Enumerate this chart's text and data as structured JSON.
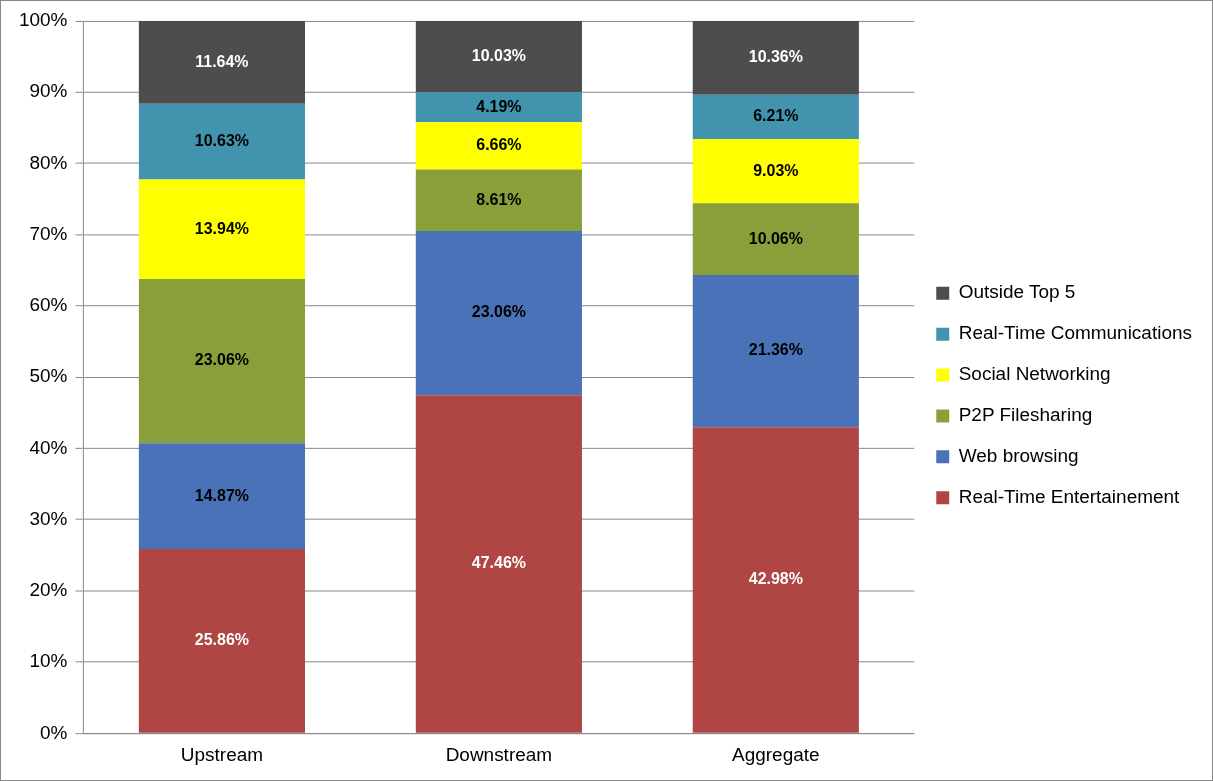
{
  "chart_data": {
    "type": "bar",
    "stacked": true,
    "categories": [
      "Upstream",
      "Downstream",
      "Aggregate"
    ],
    "series": [
      {
        "name": "Real-Time Entertainement",
        "color": "#b04643",
        "values": [
          25.86,
          47.46,
          42.98
        ],
        "value_labels": [
          "25.86%",
          "47.46%",
          "42.98%"
        ]
      },
      {
        "name": "Web browsing",
        "color": "#4a72b8",
        "values": [
          14.87,
          23.06,
          21.36
        ],
        "value_labels": [
          "14.87%",
          "23.06%",
          "21.36%"
        ]
      },
      {
        "name": "P2P Filesharing",
        "color": "#89a03a",
        "values": [
          23.06,
          8.61,
          10.06
        ],
        "value_labels": [
          "23.06%",
          "8.61%",
          "10.06%"
        ]
      },
      {
        "name": "Social Networking",
        "color": "#ffff00",
        "values": [
          13.94,
          6.66,
          9.03
        ],
        "value_labels": [
          "13.94%",
          "6.66%",
          "9.03%"
        ]
      },
      {
        "name": "Real-Time Communications",
        "color": "#4293ad",
        "values": [
          10.63,
          4.19,
          6.21
        ],
        "value_labels": [
          "10.63%",
          "4.19%",
          "6.21%"
        ]
      },
      {
        "name": "Outside Top 5",
        "color": "#4d4d4d",
        "values": [
          11.64,
          10.03,
          10.36
        ],
        "value_labels": [
          "11.64%",
          "10.03%",
          "10.36%"
        ]
      }
    ],
    "ylim": [
      0,
      100
    ],
    "yticks": [
      {
        "value": 0,
        "label": "0%"
      },
      {
        "value": 10,
        "label": "10%"
      },
      {
        "value": 20,
        "label": "20%"
      },
      {
        "value": 30,
        "label": "30%"
      },
      {
        "value": 40,
        "label": "40%"
      },
      {
        "value": 50,
        "label": "50%"
      },
      {
        "value": 60,
        "label": "60%"
      },
      {
        "value": 70,
        "label": "70%"
      },
      {
        "value": 80,
        "label": "80%"
      },
      {
        "value": 90,
        "label": "90%"
      },
      {
        "value": 100,
        "label": "100%"
      }
    ],
    "grid": "y",
    "legend": "right"
  }
}
